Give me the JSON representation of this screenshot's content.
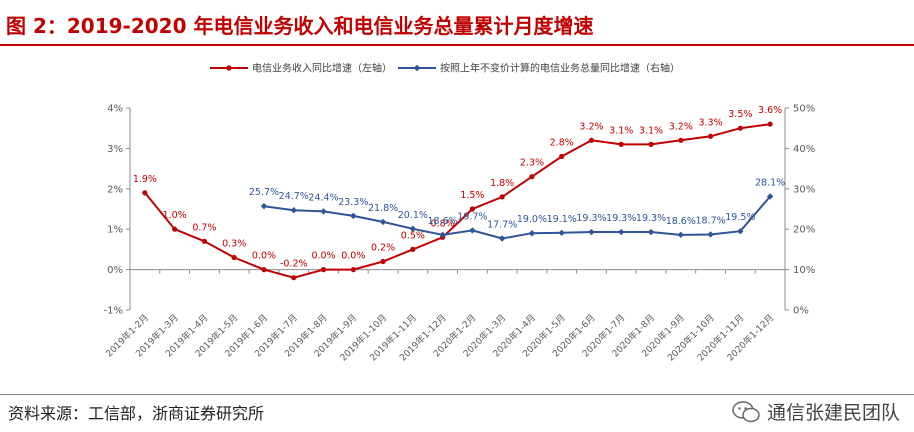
{
  "header": {
    "title": "图 2：2019-2020 年电信业务收入和电信业务总量累计月度增速"
  },
  "footer": {
    "source": "资料来源：工信部，浙商证券研究所",
    "watermark": "通信张建民团队"
  },
  "colors": {
    "red": "#C00000",
    "blue": "#2F5597",
    "axis": "#8C8C8C",
    "label_red": "#C00000",
    "label_blue": "#2F5597"
  },
  "chart_data": {
    "type": "line",
    "title": "",
    "categories": [
      "2019年1-2月",
      "2019年1-3月",
      "2019年1-4月",
      "2019年1-5月",
      "2019年1-6月",
      "2019年1-7月",
      "2019年1-8月",
      "2019年1-9月",
      "2019年1-10月",
      "2019年1-11月",
      "2019年1-12月",
      "2020年1-2月",
      "2020年1-3月",
      "2020年1-4月",
      "2020年1-5月",
      "2020年1-6月",
      "2020年1-7月",
      "2020年1-8月",
      "2020年1-9月",
      "2020年1-10月",
      "2020年1-11月",
      "2020年1-12月"
    ],
    "y_left": {
      "min": -1,
      "max": 4,
      "step": 1,
      "ticks": [
        "-1%",
        "0%",
        "1%",
        "2%",
        "3%",
        "4%"
      ]
    },
    "y_right": {
      "min": 0,
      "max": 50,
      "step": 10,
      "ticks": [
        "0%",
        "10%",
        "20%",
        "30%",
        "40%",
        "50%"
      ]
    },
    "series": [
      {
        "name": "电信业务收入同比增速（左轴）",
        "axis": "left",
        "values": [
          1.9,
          1.0,
          0.7,
          0.3,
          0.0,
          -0.2,
          0.0,
          0.0,
          0.2,
          0.5,
          0.8,
          1.5,
          1.8,
          2.3,
          2.8,
          3.2,
          3.1,
          3.1,
          3.2,
          3.3,
          3.5,
          3.6
        ],
        "labels": [
          "1.9%",
          "1.0%",
          "0.7%",
          "0.3%",
          "0.0%",
          "-0.2%",
          "0.0%",
          "0.0%",
          "0.2%",
          "0.5%",
          "0.8%",
          "1.5%",
          "1.8%",
          "2.3%",
          "2.8%",
          "3.2%",
          "3.1%",
          "3.1%",
          "3.2%",
          "3.3%",
          "3.5%",
          "3.6%"
        ]
      },
      {
        "name": "按照上年不变价计算的电信业务总量同比增速（右轴）",
        "axis": "right",
        "values": [
          null,
          null,
          null,
          null,
          25.7,
          24.7,
          24.4,
          23.3,
          21.8,
          20.1,
          18.6,
          19.7,
          17.7,
          19.0,
          19.1,
          19.3,
          19.3,
          19.3,
          18.6,
          18.7,
          19.5,
          28.1
        ],
        "labels": [
          null,
          null,
          null,
          null,
          "25.7%",
          "24.7%",
          "24.4%",
          "23.3%",
          "21.8%",
          "20.1%",
          "18.6%",
          "19.7%",
          "17.7%",
          "19.0%",
          "19.1%",
          "19.3%",
          "19.3%",
          "19.3%",
          "18.6%",
          "18.7%",
          "19.5%",
          "28.1%"
        ]
      }
    ]
  }
}
